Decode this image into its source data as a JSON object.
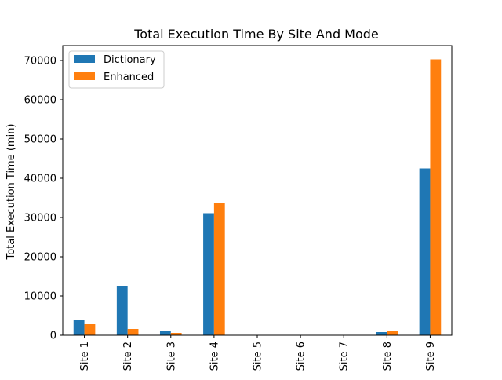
{
  "chart_data": {
    "type": "bar",
    "title": "Total Execution Time By Site And Mode",
    "xlabel": "",
    "ylabel": "Total Execution Time (min)",
    "categories": [
      "Site 1",
      "Site 2",
      "Site 3",
      "Site 4",
      "Site 5",
      "Site 6",
      "Site 7",
      "Site 8",
      "Site 9"
    ],
    "series": [
      {
        "name": "Dictionary",
        "color": "#1f77b4",
        "values": [
          3800,
          12600,
          1200,
          31100,
          0,
          0,
          0,
          800,
          42500
        ]
      },
      {
        "name": "Enhanced",
        "color": "#ff7f0e",
        "values": [
          2800,
          1600,
          600,
          33700,
          0,
          0,
          0,
          1000,
          70300
        ]
      }
    ],
    "ylim": [
      0,
      73800
    ],
    "yticks": [
      0,
      10000,
      20000,
      30000,
      40000,
      50000,
      60000,
      70000
    ],
    "grid": false,
    "legend": "top-left"
  }
}
